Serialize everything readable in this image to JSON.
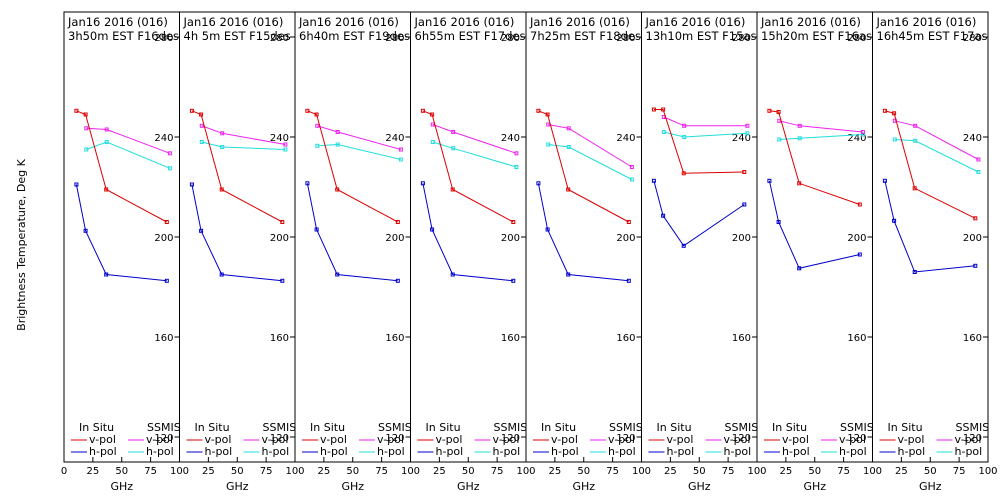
{
  "chart_data": {
    "type": "line",
    "ylabel": "Brightness Temperature, Deg K",
    "xlabel": "GHz",
    "xlim": [
      0,
      100
    ],
    "ylim": [
      110,
      290
    ],
    "x_ticks": [
      0,
      25,
      50,
      75,
      100
    ],
    "x_tick_labels": [
      "0",
      "25",
      "50",
      "75",
      "100"
    ],
    "y_ticks": [
      120,
      160,
      200,
      240,
      280
    ],
    "y_tick_labels": [
      "120",
      "160",
      "200",
      "240",
      "280"
    ],
    "legend": {
      "left_title": "In Situ",
      "right_title": "SSMIS",
      "v_pol": "v-pol",
      "h_pol": "h-pol"
    },
    "colors": {
      "insitu_v": "#dd0000",
      "insitu_h": "#0000cc",
      "ssmis_v": "#ee22ee",
      "ssmis_h": "#22dddd"
    },
    "panels": [
      {
        "title_line1": "Jan16 2016 (016)",
        "title_line2": "3h50m EST F16des",
        "insitu_v": {
          "x": [
            10.7,
            18.7,
            36.5,
            89
          ],
          "y": [
            250.5,
            249,
            219,
            206
          ]
        },
        "insitu_h": {
          "x": [
            10.7,
            18.7,
            36.5,
            89
          ],
          "y": [
            221,
            202.5,
            185,
            182.5
          ]
        },
        "ssmis_v": {
          "x": [
            19.35,
            37,
            91.65
          ],
          "y": [
            243.5,
            243,
            233.5
          ]
        },
        "ssmis_h": {
          "x": [
            19.35,
            37,
            91.65
          ],
          "y": [
            235,
            238,
            227.5
          ]
        }
      },
      {
        "title_line1": "Jan16 2016 (016)",
        "title_line2": "4h 5m EST F15des",
        "insitu_v": {
          "x": [
            10.7,
            18.7,
            36.5,
            89
          ],
          "y": [
            250.5,
            249,
            219,
            206
          ]
        },
        "insitu_h": {
          "x": [
            10.7,
            18.7,
            36.5,
            89
          ],
          "y": [
            221,
            202.5,
            185,
            182.5
          ]
        },
        "ssmis_v": {
          "x": [
            19.35,
            37,
            91.65
          ],
          "y": [
            244.5,
            241.5,
            237
          ]
        },
        "ssmis_h": {
          "x": [
            19.35,
            37,
            91.65
          ],
          "y": [
            238,
            236,
            235
          ]
        }
      },
      {
        "title_line1": "Jan16 2016 (016)",
        "title_line2": "6h40m EST F19des",
        "insitu_v": {
          "x": [
            10.7,
            18.7,
            36.5,
            89
          ],
          "y": [
            250.5,
            249,
            219,
            206
          ]
        },
        "insitu_h": {
          "x": [
            10.7,
            18.7,
            36.5,
            89
          ],
          "y": [
            221.5,
            203,
            185,
            182.5
          ]
        },
        "ssmis_v": {
          "x": [
            19.35,
            37,
            91.65
          ],
          "y": [
            244.5,
            242,
            235
          ]
        },
        "ssmis_h": {
          "x": [
            19.35,
            37,
            91.65
          ],
          "y": [
            236.5,
            237,
            231
          ]
        }
      },
      {
        "title_line1": "Jan16 2016 (016)",
        "title_line2": "6h55m EST F17des",
        "insitu_v": {
          "x": [
            10.7,
            18.7,
            36.5,
            89
          ],
          "y": [
            250.5,
            249,
            219,
            206
          ]
        },
        "insitu_h": {
          "x": [
            10.7,
            18.7,
            36.5,
            89
          ],
          "y": [
            221.5,
            203,
            185,
            182.5
          ]
        },
        "ssmis_v": {
          "x": [
            19.35,
            37,
            91.65
          ],
          "y": [
            245,
            242,
            233.5
          ]
        },
        "ssmis_h": {
          "x": [
            19.35,
            37,
            91.65
          ],
          "y": [
            238,
            235.5,
            228
          ]
        }
      },
      {
        "title_line1": "Jan16 2016 (016)",
        "title_line2": "7h25m EST F18des",
        "insitu_v": {
          "x": [
            10.7,
            18.7,
            36.5,
            89
          ],
          "y": [
            250.5,
            249,
            219,
            206
          ]
        },
        "insitu_h": {
          "x": [
            10.7,
            18.7,
            36.5,
            89
          ],
          "y": [
            221.5,
            203,
            185,
            182.5
          ]
        },
        "ssmis_v": {
          "x": [
            19.35,
            37,
            91.65
          ],
          "y": [
            245,
            243.5,
            228
          ]
        },
        "ssmis_h": {
          "x": [
            19.35,
            37,
            91.65
          ],
          "y": [
            237,
            236,
            223
          ]
        }
      },
      {
        "title_line1": "Jan16 2016 (016)",
        "title_line2": "13h10m EST F15asc",
        "insitu_v": {
          "x": [
            10.7,
            18.7,
            36.5,
            89
          ],
          "y": [
            251,
            251,
            225.5,
            226
          ]
        },
        "insitu_h": {
          "x": [
            10.7,
            18.7,
            36.5,
            89
          ],
          "y": [
            222.5,
            208.5,
            196.5,
            213
          ]
        },
        "ssmis_v": {
          "x": [
            19.35,
            37,
            91.65
          ],
          "y": [
            248,
            244.5,
            244.5
          ]
        },
        "ssmis_h": {
          "x": [
            19.35,
            37,
            91.65
          ],
          "y": [
            242,
            240,
            241.5
          ]
        }
      },
      {
        "title_line1": "Jan16 2016 (016)",
        "title_line2": "15h20m EST F16asc",
        "insitu_v": {
          "x": [
            10.7,
            18.7,
            36.5,
            89
          ],
          "y": [
            250.5,
            250,
            221.5,
            213
          ]
        },
        "insitu_h": {
          "x": [
            10.7,
            18.7,
            36.5,
            89
          ],
          "y": [
            222.5,
            206,
            187.5,
            193
          ]
        },
        "ssmis_v": {
          "x": [
            19.35,
            37,
            91.65
          ],
          "y": [
            246.5,
            244.5,
            242
          ]
        },
        "ssmis_h": {
          "x": [
            19.35,
            37,
            91.65
          ],
          "y": [
            239,
            239.5,
            241
          ]
        }
      },
      {
        "title_line1": "Jan16 2016 (016)",
        "title_line2": "16h45m EST F17asc",
        "insitu_v": {
          "x": [
            10.7,
            18.7,
            36.5,
            89
          ],
          "y": [
            250.5,
            249.5,
            219.5,
            207.5
          ]
        },
        "insitu_h": {
          "x": [
            10.7,
            18.7,
            36.5,
            89
          ],
          "y": [
            222.5,
            206.5,
            186,
            188.5
          ]
        },
        "ssmis_v": {
          "x": [
            19.35,
            37,
            91.65
          ],
          "y": [
            246.5,
            244.5,
            231
          ]
        },
        "ssmis_h": {
          "x": [
            19.35,
            37,
            91.65
          ],
          "y": [
            239,
            238.5,
            226
          ]
        }
      }
    ]
  }
}
